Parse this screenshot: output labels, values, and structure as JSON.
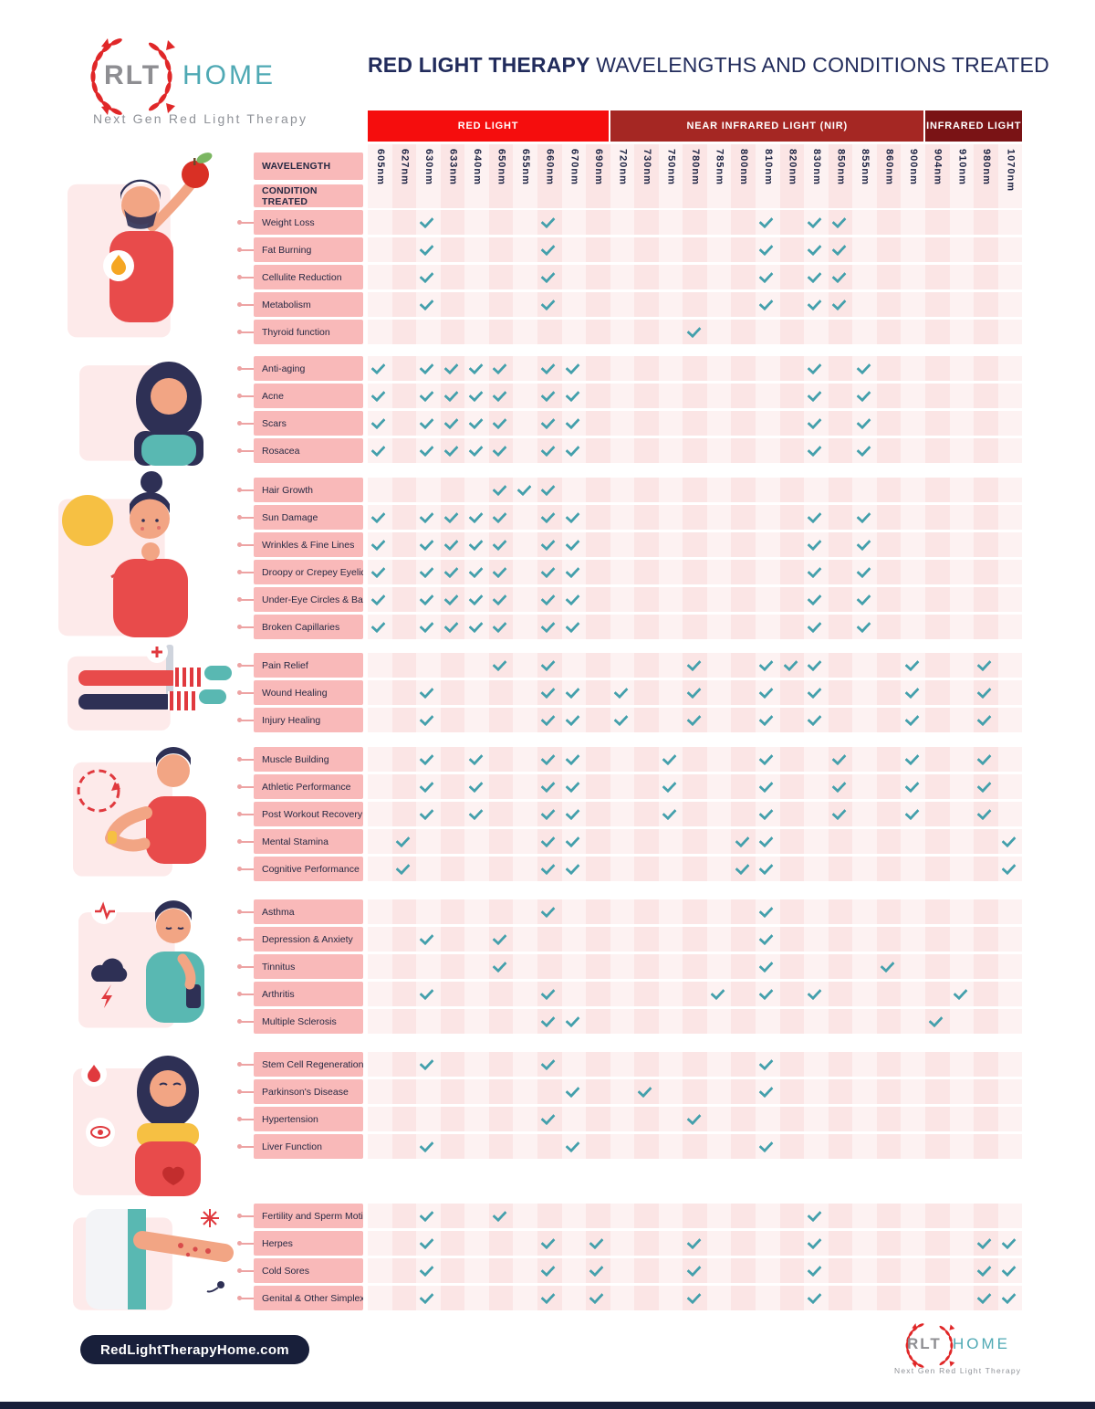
{
  "logo": {
    "rlt": "RLT",
    "home": "HOME",
    "tagline": "Next Gen Red Light Therapy"
  },
  "title": {
    "bold": "RED LIGHT THERAPY",
    "rest": " WAVELENGTHS AND CONDITIONS TREATED"
  },
  "header": {
    "wavelength_label": "WAVELENGTH",
    "condition_label": "CONDITION TREATED"
  },
  "bands": [
    {
      "label": "RED LIGHT",
      "span": 10,
      "color": "#f50d0d"
    },
    {
      "label": "NEAR INFRARED LIGHT (NIR)",
      "span": 13,
      "color": "#a52723"
    },
    {
      "label": "INFRARED LIGHT",
      "span": 4,
      "color": "#7a1315"
    }
  ],
  "wavelengths": [
    "605nm",
    "627nm",
    "630nm",
    "633nm",
    "640nm",
    "650nm",
    "655nm",
    "660nm",
    "670nm",
    "690nm",
    "720nm",
    "730nm",
    "750nm",
    "780nm",
    "785nm",
    "800nm",
    "810nm",
    "820nm",
    "830nm",
    "850nm",
    "855nm",
    "860nm",
    "900nm",
    "904nm",
    "910nm",
    "980nm",
    "1070nm"
  ],
  "groups": [
    {
      "illustration": "man-holding-apple",
      "rows": [
        {
          "label": "Weight Loss",
          "checks": [
            "630nm",
            "660nm",
            "810nm",
            "830nm",
            "850nm"
          ]
        },
        {
          "label": "Fat Burning",
          "checks": [
            "630nm",
            "660nm",
            "810nm",
            "830nm",
            "850nm"
          ]
        },
        {
          "label": "Cellulite Reduction",
          "checks": [
            "630nm",
            "660nm",
            "810nm",
            "830nm",
            "850nm"
          ]
        },
        {
          "label": "Metabolism",
          "checks": [
            "630nm",
            "660nm",
            "810nm",
            "830nm",
            "850nm"
          ]
        },
        {
          "label": "Thyroid function",
          "checks": [
            "780nm"
          ]
        }
      ]
    },
    {
      "illustration": "woman-face-care",
      "rows": [
        {
          "label": "Anti-aging",
          "checks": [
            "605nm",
            "630nm",
            "633nm",
            "640nm",
            "650nm",
            "660nm",
            "670nm",
            "830nm",
            "855nm"
          ]
        },
        {
          "label": "Acne",
          "checks": [
            "605nm",
            "630nm",
            "633nm",
            "640nm",
            "650nm",
            "660nm",
            "670nm",
            "830nm",
            "855nm"
          ]
        },
        {
          "label": "Scars",
          "checks": [
            "605nm",
            "630nm",
            "633nm",
            "640nm",
            "650nm",
            "660nm",
            "670nm",
            "830nm",
            "855nm"
          ]
        },
        {
          "label": "Rosacea",
          "checks": [
            "605nm",
            "630nm",
            "633nm",
            "640nm",
            "650nm",
            "660nm",
            "670nm",
            "830nm",
            "855nm"
          ]
        }
      ]
    },
    {
      "illustration": "woman-skin-sun",
      "rows": [
        {
          "label": "Hair Growth",
          "checks": [
            "650nm",
            "655nm",
            "660nm"
          ]
        },
        {
          "label": "Sun Damage",
          "checks": [
            "605nm",
            "630nm",
            "633nm",
            "640nm",
            "650nm",
            "660nm",
            "670nm",
            "830nm",
            "855nm"
          ]
        },
        {
          "label": "Wrinkles & Fine Lines",
          "checks": [
            "605nm",
            "630nm",
            "633nm",
            "640nm",
            "650nm",
            "660nm",
            "670nm",
            "830nm",
            "855nm"
          ]
        },
        {
          "label": "Droopy or Crepey Eyelids",
          "checks": [
            "605nm",
            "630nm",
            "633nm",
            "640nm",
            "650nm",
            "660nm",
            "670nm",
            "830nm",
            "855nm"
          ]
        },
        {
          "label": "Under-Eye Circles & Bags",
          "checks": [
            "605nm",
            "630nm",
            "633nm",
            "640nm",
            "650nm",
            "660nm",
            "670nm",
            "830nm",
            "855nm"
          ]
        },
        {
          "label": "Broken Capillaries",
          "checks": [
            "605nm",
            "630nm",
            "633nm",
            "640nm",
            "650nm",
            "660nm",
            "670nm",
            "830nm",
            "855nm"
          ]
        }
      ]
    },
    {
      "illustration": "injured-legs",
      "rows": [
        {
          "label": "Pain Relief",
          "checks": [
            "650nm",
            "660nm",
            "780nm",
            "810nm",
            "820nm",
            "830nm",
            "900nm",
            "980nm"
          ]
        },
        {
          "label": "Wound Healing",
          "checks": [
            "630nm",
            "660nm",
            "670nm",
            "720nm",
            "780nm",
            "810nm",
            "830nm",
            "900nm",
            "980nm"
          ]
        },
        {
          "label": "Injury Healing",
          "checks": [
            "630nm",
            "660nm",
            "670nm",
            "720nm",
            "780nm",
            "810nm",
            "830nm",
            "900nm",
            "980nm"
          ]
        }
      ]
    },
    {
      "illustration": "man-flexing-arm",
      "rows": [
        {
          "label": "Muscle Building",
          "checks": [
            "630nm",
            "640nm",
            "660nm",
            "670nm",
            "750nm",
            "810nm",
            "850nm",
            "900nm",
            "980nm"
          ]
        },
        {
          "label": "Athletic Performance",
          "checks": [
            "630nm",
            "640nm",
            "660nm",
            "670nm",
            "750nm",
            "810nm",
            "850nm",
            "900nm",
            "980nm"
          ]
        },
        {
          "label": "Post Workout Recovery",
          "checks": [
            "630nm",
            "640nm",
            "660nm",
            "670nm",
            "750nm",
            "810nm",
            "850nm",
            "900nm",
            "980nm"
          ]
        },
        {
          "label": "Mental Stamina",
          "checks": [
            "627nm",
            "660nm",
            "670nm",
            "800nm",
            "810nm",
            "1070nm"
          ]
        },
        {
          "label": "Cognitive Performance",
          "checks": [
            "627nm",
            "660nm",
            "670nm",
            "800nm",
            "810nm",
            "1070nm"
          ]
        }
      ]
    },
    {
      "illustration": "man-stressed",
      "rows": [
        {
          "label": "Asthma",
          "checks": [
            "660nm",
            "810nm"
          ]
        },
        {
          "label": "Depression & Anxiety",
          "checks": [
            "630nm",
            "650nm",
            "810nm"
          ]
        },
        {
          "label": "Tinnitus",
          "checks": [
            "650nm",
            "810nm",
            "860nm"
          ]
        },
        {
          "label": "Arthritis",
          "checks": [
            "630nm",
            "660nm",
            "785nm",
            "810nm",
            "830nm",
            "910nm"
          ]
        },
        {
          "label": "Multiple Sclerosis",
          "checks": [
            "660nm",
            "670nm",
            "904nm"
          ]
        }
      ]
    },
    {
      "illustration": "woman-internal-health",
      "rows": [
        {
          "label": "Stem Cell Regeneration",
          "checks": [
            "630nm",
            "660nm",
            "810nm"
          ]
        },
        {
          "label": "Parkinson's Disease",
          "checks": [
            "670nm",
            "730nm",
            "810nm"
          ]
        },
        {
          "label": "Hypertension",
          "checks": [
            "660nm",
            "780nm"
          ]
        },
        {
          "label": "Liver Function",
          "checks": [
            "630nm",
            "670nm",
            "810nm"
          ]
        }
      ]
    },
    {
      "illustration": "arm-skin-torso",
      "rows": [
        {
          "label": "Fertility and Sperm Motility",
          "checks": [
            "630nm",
            "650nm",
            "830nm"
          ]
        },
        {
          "label": "Herpes",
          "checks": [
            "630nm",
            "660nm",
            "690nm",
            "780nm",
            "830nm",
            "980nm",
            "1070nm"
          ]
        },
        {
          "label": "Cold Sores",
          "checks": [
            "630nm",
            "660nm",
            "690nm",
            "780nm",
            "830nm",
            "980nm",
            "1070nm"
          ]
        },
        {
          "label": "Genital & Other Simplexes",
          "checks": [
            "630nm",
            "660nm",
            "690nm",
            "780nm",
            "830nm",
            "980nm",
            "1070nm"
          ]
        }
      ]
    }
  ],
  "footer": {
    "website": "RedLightTherapyHome.com"
  },
  "colors": {
    "red_band": "#f50d0d",
    "nir_band": "#a52723",
    "ir_band": "#7a1315",
    "check": "#44a0ac",
    "label_pill": "#f9b9b9",
    "stripe_light": "#fdf2f2",
    "stripe_dark": "#fbe5e5",
    "title_navy": "#222c5c",
    "logo_gray": "#8e8e92",
    "logo_teal": "#4fa9b4",
    "footer_bg": "#181f3a",
    "wreath_red": "#e02728"
  }
}
